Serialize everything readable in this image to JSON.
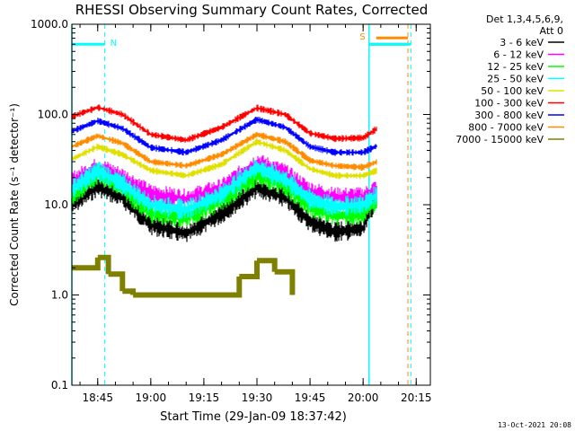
{
  "chart_data": {
    "type": "line",
    "title": "RHESSI Observing Summary Count Rates, Corrected",
    "xlabel": "Start Time (29-Jan-09 18:37:42)",
    "ylabel": "Corrected Count Rate (s⁻¹ detector⁻¹)",
    "ylog": true,
    "ylim": [
      0.1,
      1000.0
    ],
    "xlim": [
      "18:37:42",
      "20:19:00"
    ],
    "yticks": [
      "1000.0",
      "100.0",
      "10.0",
      "1.0",
      "0.1"
    ],
    "xticks": [
      "18:45",
      "19:00",
      "19:15",
      "19:30",
      "19:45",
      "20:00",
      "20:15"
    ],
    "legend_header": [
      "Det 1,3,4,5,6,9,",
      "Att 0"
    ],
    "legend_position": "top-right",
    "series": [
      {
        "name": "3 - 6 keV",
        "color": "#000000",
        "points": [
          [
            "18:37:42",
            10.0
          ],
          [
            "18:45",
            16.0
          ],
          [
            "18:52",
            12.0
          ],
          [
            "19:00",
            6.0
          ],
          [
            "19:10",
            4.8
          ],
          [
            "19:20",
            8.0
          ],
          [
            "19:30",
            15.5
          ],
          [
            "19:38",
            12.0
          ],
          [
            "19:45",
            6.5
          ],
          [
            "19:52",
            5.0
          ],
          [
            "20:00",
            5.5
          ],
          [
            "20:04",
            13.0
          ]
        ]
      },
      {
        "name": "6 - 12 keV",
        "color": "#ff00ff",
        "points": [
          [
            "18:37:42",
            18.0
          ],
          [
            "18:45",
            26.0
          ],
          [
            "18:52",
            20.0
          ],
          [
            "19:00",
            13.0
          ],
          [
            "19:10",
            11.5
          ],
          [
            "19:20",
            15.0
          ],
          [
            "19:30",
            29.0
          ],
          [
            "19:38",
            22.0
          ],
          [
            "19:45",
            14.0
          ],
          [
            "19:52",
            12.0
          ],
          [
            "20:00",
            12.0
          ],
          [
            "20:04",
            15.0
          ]
        ]
      },
      {
        "name": "12 - 25 keV",
        "color": "#00ff00",
        "points": [
          [
            "18:37:42",
            12.0
          ],
          [
            "18:45",
            22.0
          ],
          [
            "18:52",
            15.0
          ],
          [
            "19:00",
            8.0
          ],
          [
            "19:10",
            7.2
          ],
          [
            "19:20",
            11.0
          ],
          [
            "19:30",
            21.0
          ],
          [
            "19:38",
            16.0
          ],
          [
            "19:45",
            9.5
          ],
          [
            "19:52",
            7.5
          ],
          [
            "20:00",
            8.0
          ],
          [
            "20:04",
            11.0
          ]
        ]
      },
      {
        "name": "25 - 50 keV",
        "color": "#00ffff",
        "points": [
          [
            "18:37:42",
            15.0
          ],
          [
            "18:45",
            24.0
          ],
          [
            "18:52",
            17.0
          ],
          [
            "19:00",
            10.0
          ],
          [
            "19:10",
            8.8
          ],
          [
            "19:20",
            13.0
          ],
          [
            "19:30",
            26.0
          ],
          [
            "19:38",
            19.0
          ],
          [
            "19:45",
            11.5
          ],
          [
            "19:52",
            9.5
          ],
          [
            "20:00",
            10.0
          ],
          [
            "20:04",
            13.0
          ]
        ]
      },
      {
        "name": "50 - 100 keV",
        "color": "#e0e000",
        "points": [
          [
            "18:37:42",
            32.0
          ],
          [
            "18:45",
            44.0
          ],
          [
            "18:52",
            36.0
          ],
          [
            "19:00",
            24.0
          ],
          [
            "19:10",
            21.0
          ],
          [
            "19:20",
            28.0
          ],
          [
            "19:30",
            50.0
          ],
          [
            "19:38",
            40.0
          ],
          [
            "19:45",
            25.0
          ],
          [
            "19:52",
            21.0
          ],
          [
            "20:00",
            21.0
          ],
          [
            "20:04",
            24.0
          ]
        ]
      },
      {
        "name": "100 - 300 keV",
        "color": "#ff0000",
        "points": [
          [
            "18:37:42",
            95.0
          ],
          [
            "18:45",
            120.0
          ],
          [
            "18:52",
            100.0
          ],
          [
            "19:00",
            60.0
          ],
          [
            "19:10",
            52.0
          ],
          [
            "19:20",
            72.0
          ],
          [
            "19:30",
            118.0
          ],
          [
            "19:38",
            100.0
          ],
          [
            "19:45",
            62.0
          ],
          [
            "19:52",
            54.0
          ],
          [
            "20:00",
            55.0
          ],
          [
            "20:04",
            70.0
          ]
        ]
      },
      {
        "name": "300 - 800 keV",
        "color": "#0000ff",
        "points": [
          [
            "18:37:42",
            65.0
          ],
          [
            "18:45",
            85.0
          ],
          [
            "18:52",
            70.0
          ],
          [
            "19:00",
            43.0
          ],
          [
            "19:10",
            38.0
          ],
          [
            "19:20",
            52.0
          ],
          [
            "19:30",
            88.0
          ],
          [
            "19:38",
            72.0
          ],
          [
            "19:45",
            44.0
          ],
          [
            "19:52",
            38.0
          ],
          [
            "20:00",
            38.0
          ],
          [
            "20:04",
            45.0
          ]
        ]
      },
      {
        "name": "800 - 7000 keV",
        "color": "#ff8c00",
        "points": [
          [
            "18:37:42",
            44.0
          ],
          [
            "18:45",
            58.0
          ],
          [
            "18:52",
            48.0
          ],
          [
            "19:00",
            30.0
          ],
          [
            "19:10",
            27.0
          ],
          [
            "19:20",
            36.0
          ],
          [
            "19:30",
            60.0
          ],
          [
            "19:38",
            50.0
          ],
          [
            "19:45",
            31.0
          ],
          [
            "19:52",
            27.0
          ],
          [
            "20:00",
            26.0
          ],
          [
            "20:04",
            30.0
          ]
        ]
      },
      {
        "name": "7000 - 15000 keV",
        "color": "#808000",
        "points": [
          [
            "18:37:42",
            2.0
          ],
          [
            "18:45",
            2.6
          ],
          [
            "18:48",
            1.7
          ],
          [
            "18:52",
            1.1
          ],
          [
            "18:55",
            1.0
          ],
          [
            "19:22",
            1.0
          ],
          [
            "19:25",
            1.6
          ],
          [
            "19:30",
            2.4
          ],
          [
            "19:35",
            1.8
          ],
          [
            "19:40",
            1.0
          ]
        ]
      }
    ],
    "intervals": [
      {
        "label": "N",
        "color": "#00ffff",
        "start": "18:37:42",
        "end": "18:47:00",
        "level": 600
      },
      {
        "label": "S",
        "color": "#ff8c00",
        "start": "20:01:40",
        "end": "20:12:40",
        "level": 600
      },
      {
        "label": "",
        "color": "#00ffff",
        "start": "20:01:40",
        "end": "20:13:30",
        "level": 600
      }
    ],
    "timestamp": "13-Oct-2021 20:08"
  }
}
